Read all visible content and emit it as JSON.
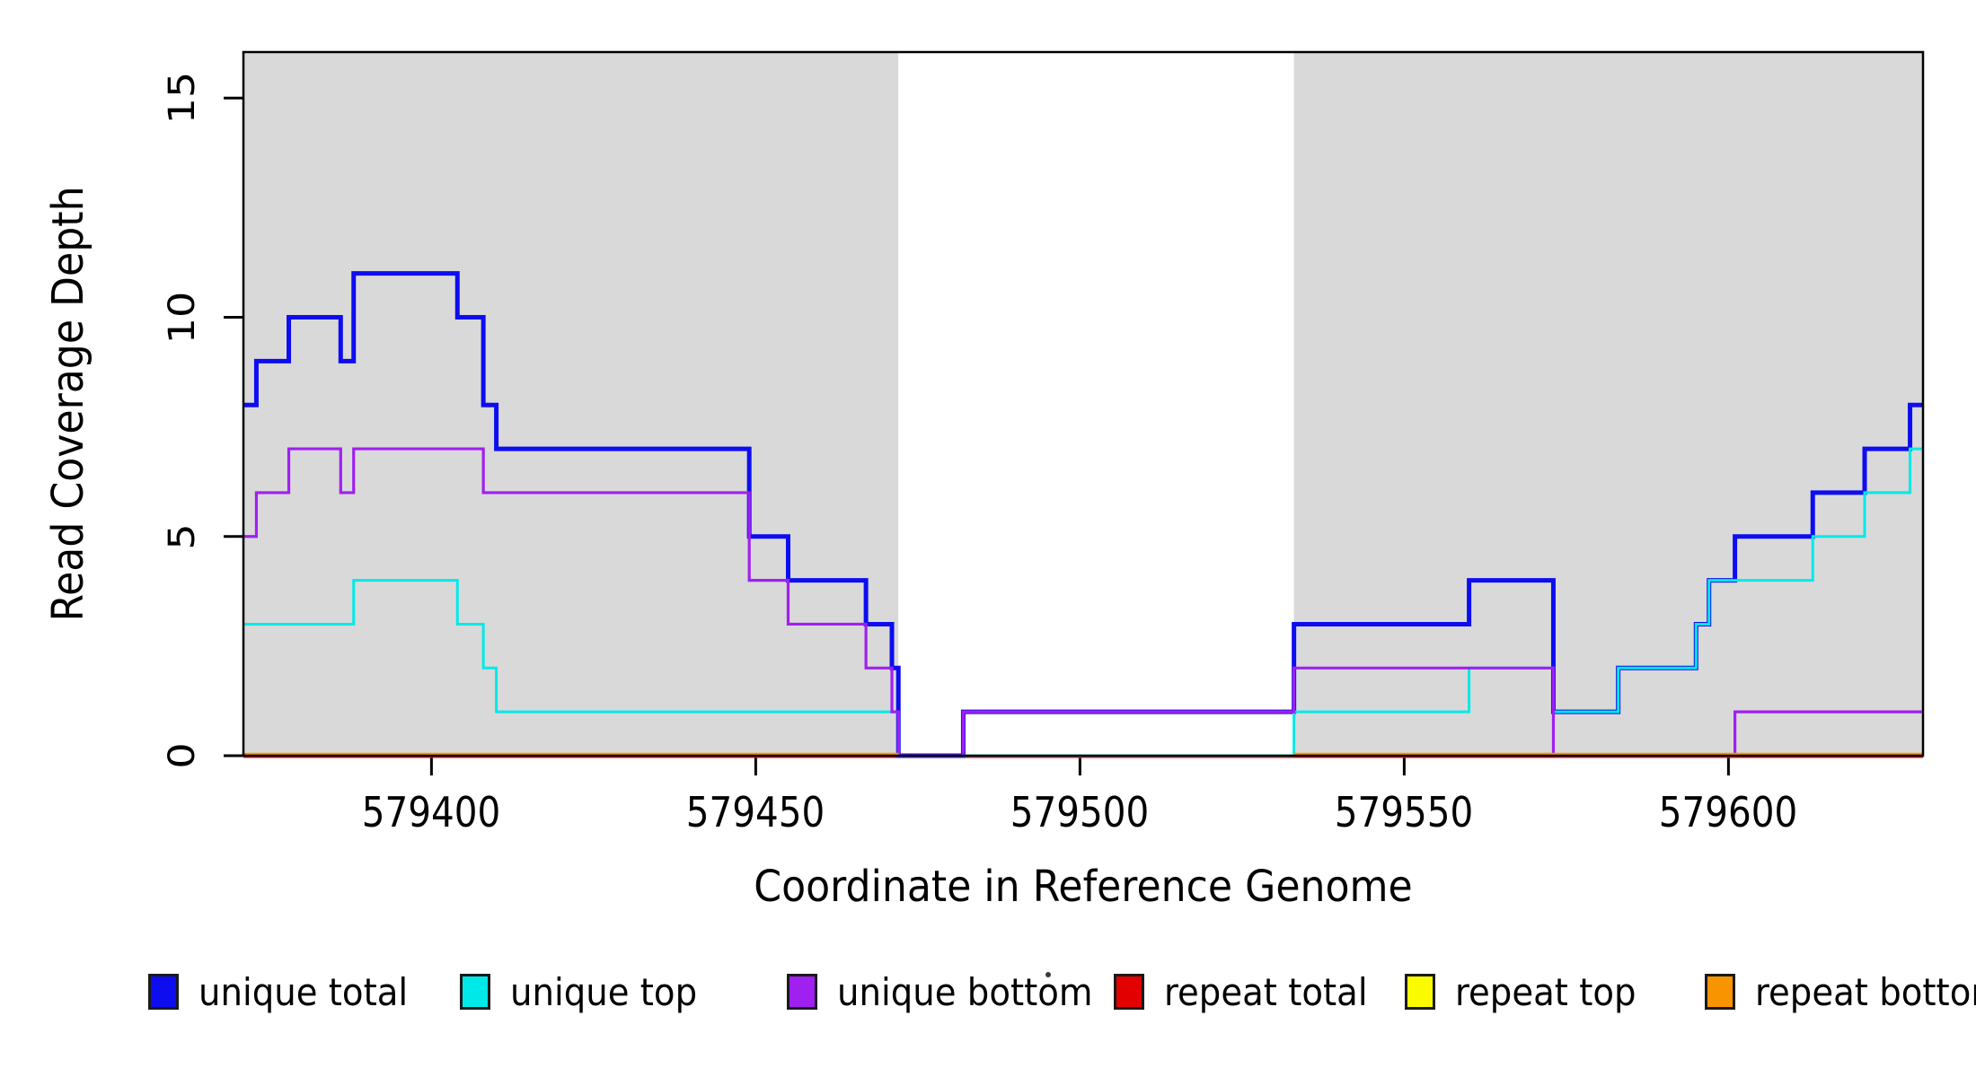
{
  "chart_data": {
    "type": "step-line",
    "title": "",
    "xlabel": "Coordinate in Reference Genome",
    "ylabel": "Read Coverage Depth",
    "xlim": [
      579371,
      579630
    ],
    "ylim": [
      0,
      16.05
    ],
    "xticks": [
      579400,
      579450,
      579500,
      579550,
      579600
    ],
    "yticks": [
      0,
      5,
      10,
      15
    ],
    "grid": false,
    "plot_background": "#FFFFFF",
    "box_color": "#000000",
    "shaded_regions": [
      {
        "x0": 579371,
        "x1": 579472,
        "color": "#D9D9D9"
      },
      {
        "x0": 579533,
        "x1": 579630,
        "color": "#D9D9D9"
      }
    ],
    "series": [
      {
        "name": "unique total",
        "color": "#0D0DF0",
        "width": 5,
        "kind": "step",
        "steps": [
          [
            579371,
            8
          ],
          [
            579373,
            9
          ],
          [
            579378,
            10
          ],
          [
            579386,
            9
          ],
          [
            579388,
            11
          ],
          [
            579404,
            10
          ],
          [
            579408,
            8
          ],
          [
            579410,
            7
          ],
          [
            579449,
            5
          ],
          [
            579455,
            4
          ],
          [
            579467,
            3
          ],
          [
            579471,
            2
          ],
          [
            579472,
            0
          ],
          [
            579482,
            1
          ],
          [
            579533,
            3
          ],
          [
            579560,
            4
          ],
          [
            579573,
            1
          ],
          [
            579583,
            2
          ],
          [
            579595,
            3
          ],
          [
            579597,
            4
          ],
          [
            579601,
            5
          ],
          [
            579613,
            6
          ],
          [
            579621,
            7
          ],
          [
            579628,
            8
          ]
        ]
      },
      {
        "name": "unique top",
        "color": "#00E9E9",
        "width": 3,
        "kind": "step",
        "steps": [
          [
            579371,
            3
          ],
          [
            579388,
            4
          ],
          [
            579404,
            3
          ],
          [
            579408,
            2
          ],
          [
            579410,
            1
          ],
          [
            579472,
            0
          ],
          [
            579533,
            1
          ],
          [
            579560,
            2
          ],
          [
            579573,
            1
          ],
          [
            579583,
            2
          ],
          [
            579595,
            3
          ],
          [
            579597,
            4
          ],
          [
            579613,
            5
          ],
          [
            579621,
            6
          ],
          [
            579628,
            7
          ]
        ]
      },
      {
        "name": "unique bottom",
        "color": "#A020F0",
        "width": 3.2,
        "kind": "step",
        "steps": [
          [
            579371,
            5
          ],
          [
            579373,
            6
          ],
          [
            579378,
            7
          ],
          [
            579386,
            6
          ],
          [
            579388,
            7
          ],
          [
            579408,
            6
          ],
          [
            579449,
            4
          ],
          [
            579455,
            3
          ],
          [
            579467,
            2
          ],
          [
            579471,
            1
          ],
          [
            579472,
            0
          ],
          [
            579482,
            1
          ],
          [
            579533,
            2
          ],
          [
            579573,
            0
          ],
          [
            579601,
            1
          ]
        ]
      },
      {
        "name": "repeat total",
        "color": "#E30000",
        "width": 2,
        "kind": "flat",
        "value": 0,
        "segments": [
          [
            579371,
            579630
          ]
        ]
      },
      {
        "name": "repeat top",
        "color": "#FBFB00",
        "width": 3,
        "kind": "flat",
        "value": 0,
        "segments": [
          [
            579371,
            579472
          ],
          [
            579533,
            579630
          ]
        ]
      },
      {
        "name": "repeat bottom",
        "color": "#F89400",
        "width": 4.5,
        "kind": "flat",
        "value": 0,
        "segments": [
          [
            579371,
            579472
          ],
          [
            579533,
            579630
          ]
        ]
      }
    ],
    "draw_order": [
      "repeat total",
      "unique total",
      "unique top",
      "unique bottom",
      "repeat top",
      "repeat bottom"
    ],
    "legend_position": "bottom",
    "legend": [
      {
        "label": "unique total",
        "color": "#0D0DF0"
      },
      {
        "label": "unique top",
        "color": "#00E9E9"
      },
      {
        "label": "unique bottom",
        "color": "#A020F0"
      },
      {
        "label": "repeat total",
        "color": "#E30000"
      },
      {
        "label": "repeat top",
        "color": "#FBFB00"
      },
      {
        "label": "repeat bottom",
        "color": "#F89400"
      }
    ],
    "stray_mark": "·"
  }
}
